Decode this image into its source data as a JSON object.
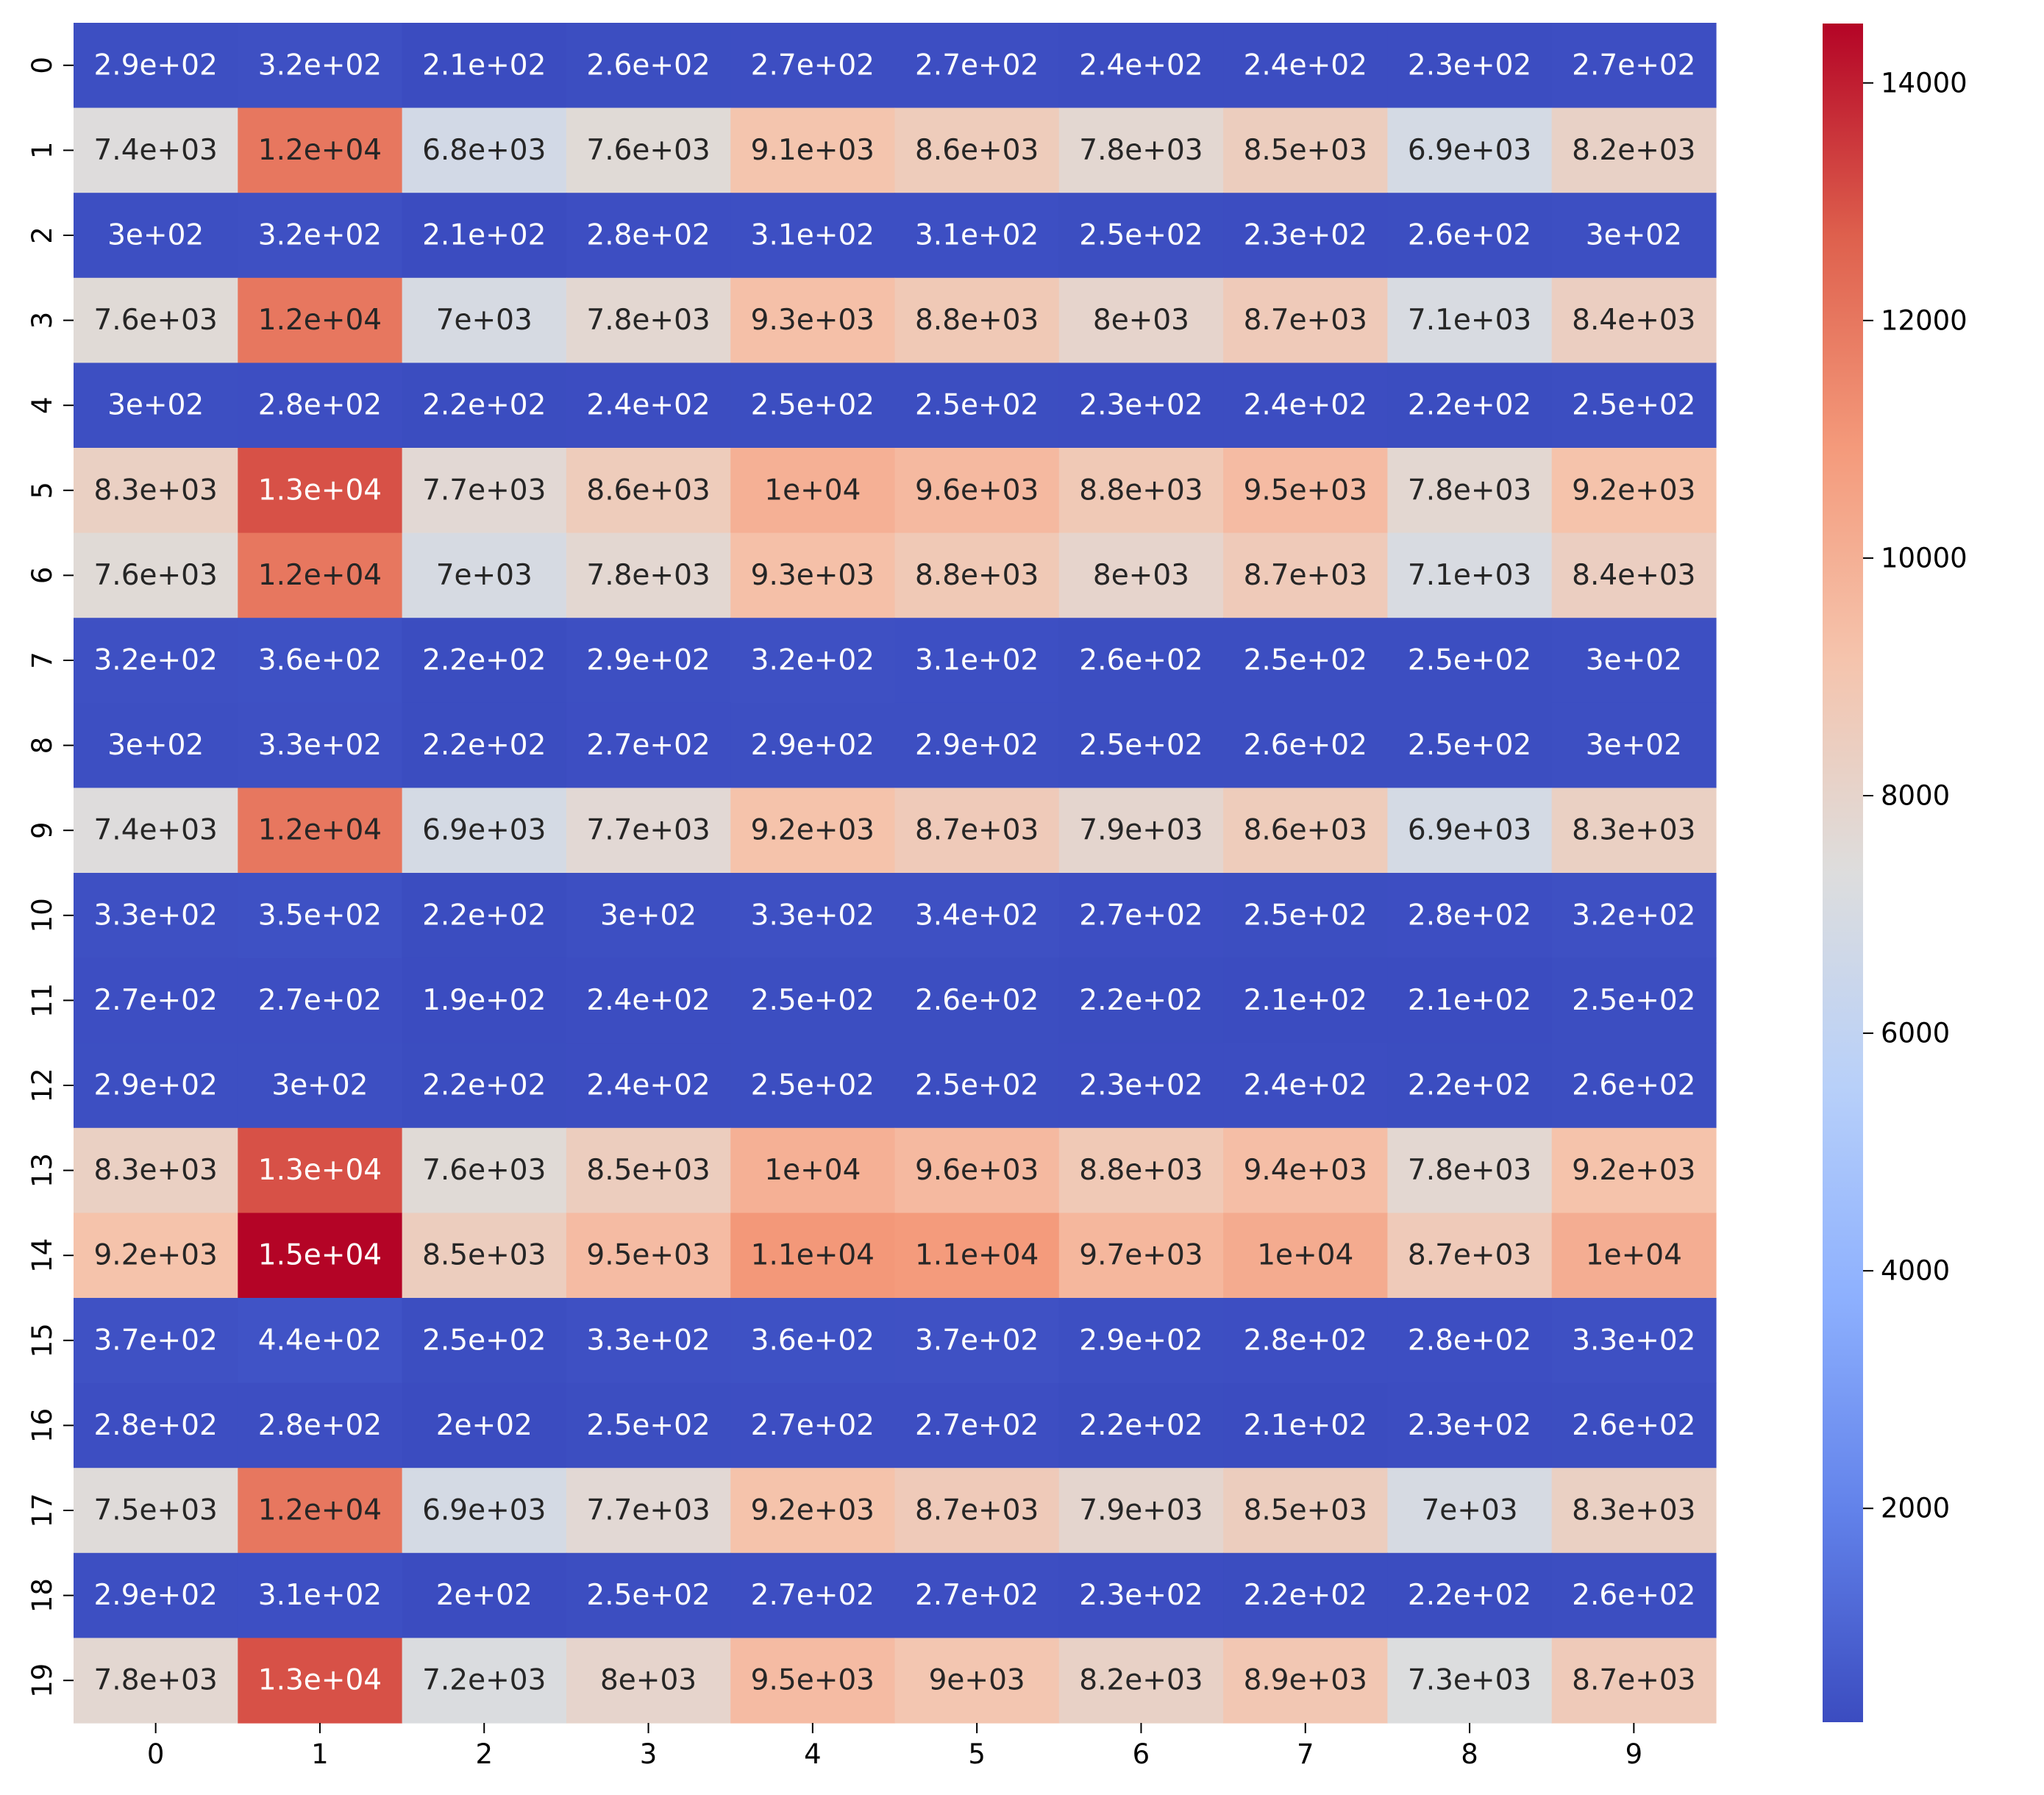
{
  "chart_data": {
    "type": "heatmap",
    "title": "",
    "xlabel": "",
    "ylabel": "",
    "x_categories": [
      "0",
      "1",
      "2",
      "3",
      "4",
      "5",
      "6",
      "7",
      "8",
      "9"
    ],
    "y_categories": [
      "0",
      "1",
      "2",
      "3",
      "4",
      "5",
      "6",
      "7",
      "8",
      "9",
      "10",
      "11",
      "12",
      "13",
      "14",
      "15",
      "16",
      "17",
      "18",
      "19"
    ],
    "colormap": "coolwarm",
    "color_range": [
      200,
      14500
    ],
    "colorbar_ticks": [
      2000,
      4000,
      6000,
      8000,
      10000,
      12000,
      14000
    ],
    "colorbar_tick_labels": [
      "2000",
      "4000",
      "6000",
      "8000",
      "10000",
      "12000",
      "14000"
    ],
    "labels": [
      [
        "2.9e+02",
        "3.2e+02",
        "2.1e+02",
        "2.6e+02",
        "2.7e+02",
        "2.7e+02",
        "2.4e+02",
        "2.4e+02",
        "2.3e+02",
        "2.7e+02"
      ],
      [
        "7.4e+03",
        "1.2e+04",
        "6.8e+03",
        "7.6e+03",
        "9.1e+03",
        "8.6e+03",
        "7.8e+03",
        "8.5e+03",
        "6.9e+03",
        "8.2e+03"
      ],
      [
        "3e+02",
        "3.2e+02",
        "2.1e+02",
        "2.8e+02",
        "3.1e+02",
        "3.1e+02",
        "2.5e+02",
        "2.3e+02",
        "2.6e+02",
        "3e+02"
      ],
      [
        "7.6e+03",
        "1.2e+04",
        "7e+03",
        "7.8e+03",
        "9.3e+03",
        "8.8e+03",
        "8e+03",
        "8.7e+03",
        "7.1e+03",
        "8.4e+03"
      ],
      [
        "3e+02",
        "2.8e+02",
        "2.2e+02",
        "2.4e+02",
        "2.5e+02",
        "2.5e+02",
        "2.3e+02",
        "2.4e+02",
        "2.2e+02",
        "2.5e+02"
      ],
      [
        "8.3e+03",
        "1.3e+04",
        "7.7e+03",
        "8.6e+03",
        "1e+04",
        "9.6e+03",
        "8.8e+03",
        "9.5e+03",
        "7.8e+03",
        "9.2e+03"
      ],
      [
        "7.6e+03",
        "1.2e+04",
        "7e+03",
        "7.8e+03",
        "9.3e+03",
        "8.8e+03",
        "8e+03",
        "8.7e+03",
        "7.1e+03",
        "8.4e+03"
      ],
      [
        "3.2e+02",
        "3.6e+02",
        "2.2e+02",
        "2.9e+02",
        "3.2e+02",
        "3.1e+02",
        "2.6e+02",
        "2.5e+02",
        "2.5e+02",
        "3e+02"
      ],
      [
        "3e+02",
        "3.3e+02",
        "2.2e+02",
        "2.7e+02",
        "2.9e+02",
        "2.9e+02",
        "2.5e+02",
        "2.6e+02",
        "2.5e+02",
        "3e+02"
      ],
      [
        "7.4e+03",
        "1.2e+04",
        "6.9e+03",
        "7.7e+03",
        "9.2e+03",
        "8.7e+03",
        "7.9e+03",
        "8.6e+03",
        "6.9e+03",
        "8.3e+03"
      ],
      [
        "3.3e+02",
        "3.5e+02",
        "2.2e+02",
        "3e+02",
        "3.3e+02",
        "3.4e+02",
        "2.7e+02",
        "2.5e+02",
        "2.8e+02",
        "3.2e+02"
      ],
      [
        "2.7e+02",
        "2.7e+02",
        "1.9e+02",
        "2.4e+02",
        "2.5e+02",
        "2.6e+02",
        "2.2e+02",
        "2.1e+02",
        "2.1e+02",
        "2.5e+02"
      ],
      [
        "2.9e+02",
        "3e+02",
        "2.2e+02",
        "2.4e+02",
        "2.5e+02",
        "2.5e+02",
        "2.3e+02",
        "2.4e+02",
        "2.2e+02",
        "2.6e+02"
      ],
      [
        "8.3e+03",
        "1.3e+04",
        "7.6e+03",
        "8.5e+03",
        "1e+04",
        "9.6e+03",
        "8.8e+03",
        "9.4e+03",
        "7.8e+03",
        "9.2e+03"
      ],
      [
        "9.2e+03",
        "1.5e+04",
        "8.5e+03",
        "9.5e+03",
        "1.1e+04",
        "1.1e+04",
        "9.7e+03",
        "1e+04",
        "8.7e+03",
        "1e+04"
      ],
      [
        "3.7e+02",
        "4.4e+02",
        "2.5e+02",
        "3.3e+02",
        "3.6e+02",
        "3.7e+02",
        "2.9e+02",
        "2.8e+02",
        "2.8e+02",
        "3.3e+02"
      ],
      [
        "2.8e+02",
        "2.8e+02",
        "2e+02",
        "2.5e+02",
        "2.7e+02",
        "2.7e+02",
        "2.2e+02",
        "2.1e+02",
        "2.3e+02",
        "2.6e+02"
      ],
      [
        "7.5e+03",
        "1.2e+04",
        "6.9e+03",
        "7.7e+03",
        "9.2e+03",
        "8.7e+03",
        "7.9e+03",
        "8.5e+03",
        "7e+03",
        "8.3e+03"
      ],
      [
        "2.9e+02",
        "3.1e+02",
        "2e+02",
        "2.5e+02",
        "2.7e+02",
        "2.7e+02",
        "2.3e+02",
        "2.2e+02",
        "2.2e+02",
        "2.6e+02"
      ],
      [
        "7.8e+03",
        "1.3e+04",
        "7.2e+03",
        "8e+03",
        "9.5e+03",
        "9e+03",
        "8.2e+03",
        "8.9e+03",
        "7.3e+03",
        "8.7e+03"
      ]
    ],
    "values": [
      [
        290,
        320,
        210,
        260,
        270,
        270,
        240,
        240,
        230,
        270
      ],
      [
        7400,
        12000,
        6800,
        7600,
        9100,
        8600,
        7800,
        8500,
        6900,
        8200
      ],
      [
        300,
        320,
        210,
        280,
        310,
        310,
        250,
        230,
        260,
        300
      ],
      [
        7600,
        12000,
        7000,
        7800,
        9300,
        8800,
        8000,
        8700,
        7100,
        8400
      ],
      [
        300,
        280,
        220,
        240,
        250,
        250,
        230,
        240,
        220,
        250
      ],
      [
        8300,
        13000,
        7700,
        8600,
        10000,
        9600,
        8800,
        9500,
        7800,
        9200
      ],
      [
        7600,
        12000,
        7000,
        7800,
        9300,
        8800,
        8000,
        8700,
        7100,
        8400
      ],
      [
        320,
        360,
        220,
        290,
        320,
        310,
        260,
        250,
        250,
        300
      ],
      [
        300,
        330,
        220,
        270,
        290,
        290,
        250,
        260,
        250,
        300
      ],
      [
        7400,
        12000,
        6900,
        7700,
        9200,
        8700,
        7900,
        8600,
        6900,
        8300
      ],
      [
        330,
        350,
        220,
        300,
        330,
        340,
        270,
        250,
        280,
        320
      ],
      [
        270,
        270,
        190,
        240,
        250,
        260,
        220,
        210,
        210,
        250
      ],
      [
        290,
        300,
        220,
        240,
        250,
        250,
        230,
        240,
        220,
        260
      ],
      [
        8300,
        13000,
        7600,
        8500,
        10000,
        9600,
        8800,
        9400,
        7800,
        9200
      ],
      [
        9200,
        14500,
        8500,
        9500,
        11000,
        10900,
        9700,
        10200,
        8700,
        10100
      ],
      [
        370,
        440,
        250,
        330,
        360,
        370,
        290,
        280,
        280,
        330
      ],
      [
        280,
        280,
        200,
        250,
        270,
        270,
        220,
        210,
        230,
        260
      ],
      [
        7500,
        12000,
        6900,
        7700,
        9200,
        8700,
        7900,
        8500,
        7000,
        8300
      ],
      [
        290,
        310,
        200,
        250,
        270,
        270,
        230,
        220,
        220,
        260
      ],
      [
        7800,
        13000,
        7200,
        8000,
        9500,
        9000,
        8200,
        8900,
        7300,
        8700
      ]
    ]
  }
}
